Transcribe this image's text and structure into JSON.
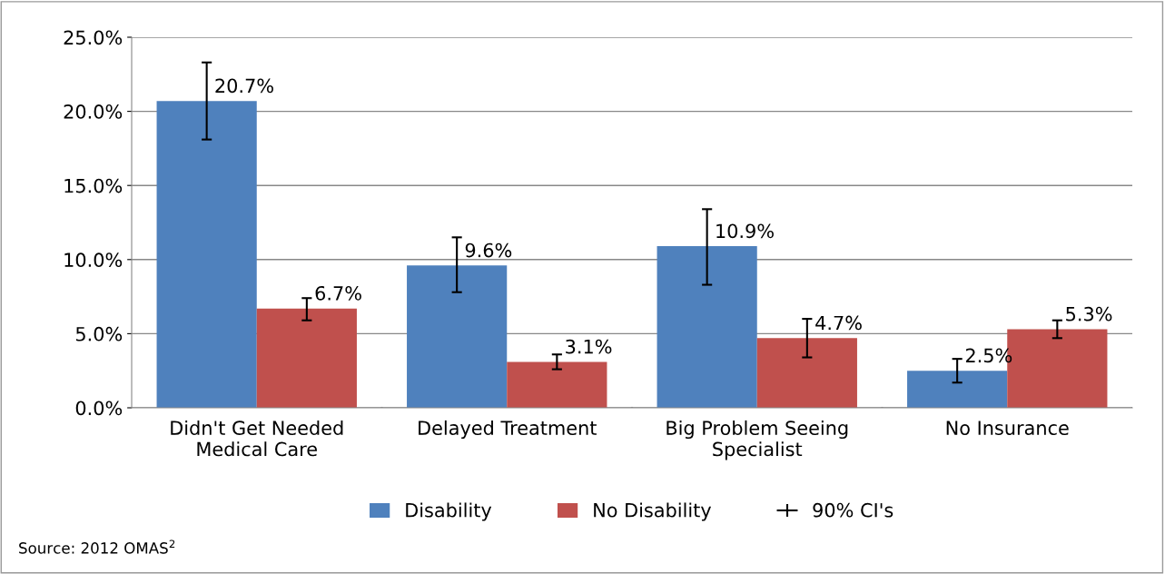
{
  "chart_data": {
    "type": "bar",
    "categories": [
      "Didn't Get Needed\nMedical Care",
      "Delayed Treatment",
      "Big Problem Seeing\nSpecialist",
      "No Insurance"
    ],
    "series": [
      {
        "name": "Disability",
        "color": "#4f81bd",
        "values": [
          20.7,
          9.6,
          10.9,
          2.5
        ],
        "value_labels": [
          "20.7%",
          "9.6%",
          "10.9%",
          "2.5%"
        ],
        "errors": [
          [
            18.1,
            23.3
          ],
          [
            7.8,
            11.5
          ],
          [
            8.3,
            13.4
          ],
          [
            1.7,
            3.3
          ]
        ]
      },
      {
        "name": "No Disability",
        "color": "#c0504d",
        "values": [
          6.7,
          3.1,
          4.7,
          5.3
        ],
        "value_labels": [
          "6.7%",
          "3.1%",
          "4.7%",
          "5.3%"
        ],
        "errors": [
          [
            5.9,
            7.4
          ],
          [
            2.6,
            3.6
          ],
          [
            3.4,
            6.0
          ],
          [
            4.7,
            5.9
          ]
        ]
      }
    ],
    "ylim": [
      0,
      25
    ],
    "yticks": [
      {
        "value": 0,
        "label": "0.0%"
      },
      {
        "value": 5,
        "label": "5.0%"
      },
      {
        "value": 10,
        "label": "10.0%"
      },
      {
        "value": 15,
        "label": "15.0%"
      },
      {
        "value": 20,
        "label": "20.0%"
      },
      {
        "value": 25,
        "label": "25.0%"
      }
    ],
    "grid": "y",
    "legend": "bottom",
    "annotations": [
      "90% CI's",
      "Source: 2012 OMAS$^{2}$"
    ]
  }
}
